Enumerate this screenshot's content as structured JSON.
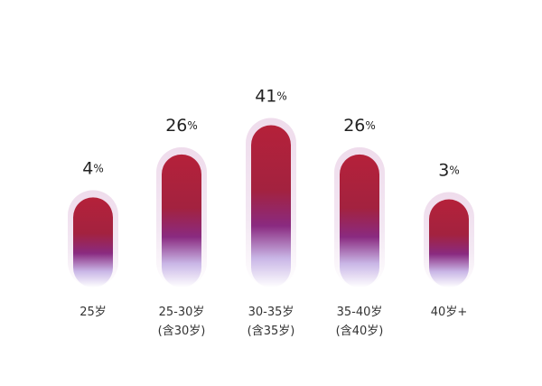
{
  "chart_data": {
    "type": "bar",
    "categories": [
      "25岁",
      "25-30岁\n(含30岁)",
      "30-35岁\n(含35岁)",
      "35-40岁\n(含40岁)",
      "40岁+"
    ],
    "values": [
      4,
      26,
      41,
      26,
      3
    ],
    "value_labels": [
      "4%",
      "26%",
      "41%",
      "26%",
      "3%"
    ],
    "color": "#b5213a"
  }
}
